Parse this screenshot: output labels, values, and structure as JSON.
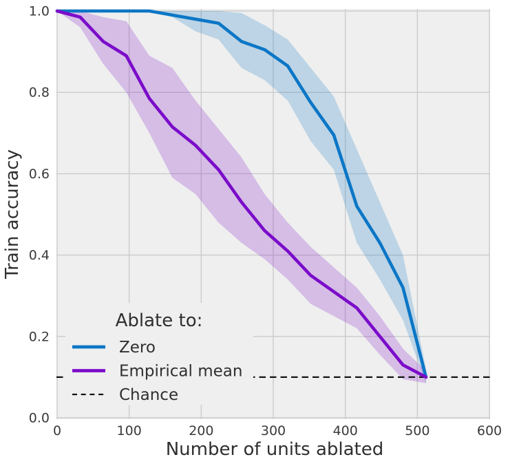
{
  "chart_data": {
    "type": "line",
    "title": "",
    "xlabel": "Number of units ablated",
    "ylabel": "Train accuracy",
    "xlim": [
      0,
      600
    ],
    "ylim": [
      0.0,
      1.0
    ],
    "x_ticks": [
      0,
      100,
      200,
      300,
      400,
      500,
      600
    ],
    "y_ticks": [
      0.0,
      0.2,
      0.4,
      0.6,
      0.8,
      1.0
    ],
    "y_tick_labels": [
      "0.0",
      "0.2",
      "0.4",
      "0.6",
      "0.8",
      "1.0"
    ],
    "grid": true,
    "legend_position": "lower left inside",
    "legend": {
      "title": "Ablate to:",
      "entries": [
        {
          "label": "Zero",
          "style": "solid",
          "color": "#0b76c6"
        },
        {
          "label": "Empirical mean",
          "style": "solid",
          "color": "#7b0cc9"
        },
        {
          "label": "Chance",
          "style": "dashed",
          "color": "#141414"
        }
      ]
    },
    "x": [
      0,
      32,
      64,
      96,
      128,
      160,
      192,
      224,
      256,
      288,
      320,
      352,
      384,
      416,
      448,
      480,
      512
    ],
    "series": [
      {
        "name": "Zero",
        "color": "#0b76c6",
        "values": [
          1.0,
          1.0,
          1.0,
          1.0,
          1.0,
          0.99,
          0.98,
          0.97,
          0.925,
          0.905,
          0.865,
          0.775,
          0.695,
          0.52,
          0.43,
          0.32,
          0.1
        ],
        "band_upper": [
          1.0,
          1.0,
          1.0,
          1.0,
          1.0,
          1.0,
          1.0,
          1.0,
          0.995,
          0.965,
          0.93,
          0.86,
          0.79,
          0.66,
          0.53,
          0.4,
          0.12
        ],
        "band_lower": [
          1.0,
          1.0,
          1.0,
          1.0,
          1.0,
          0.985,
          0.95,
          0.93,
          0.86,
          0.83,
          0.78,
          0.68,
          0.61,
          0.43,
          0.34,
          0.24,
          0.085
        ]
      },
      {
        "name": "Empirical mean",
        "color": "#7b0cc9",
        "values": [
          1.0,
          0.985,
          0.925,
          0.89,
          0.785,
          0.715,
          0.67,
          0.61,
          0.53,
          0.46,
          0.41,
          0.35,
          0.31,
          0.27,
          0.2,
          0.13,
          0.1
        ],
        "band_upper": [
          1.0,
          1.0,
          0.985,
          0.975,
          0.89,
          0.86,
          0.78,
          0.71,
          0.64,
          0.55,
          0.48,
          0.42,
          0.37,
          0.32,
          0.25,
          0.17,
          0.115
        ],
        "band_lower": [
          1.0,
          0.96,
          0.87,
          0.8,
          0.7,
          0.59,
          0.55,
          0.48,
          0.43,
          0.39,
          0.34,
          0.28,
          0.25,
          0.22,
          0.155,
          0.095,
          0.085
        ]
      }
    ],
    "chance_value": 0.1,
    "colors": {
      "figure_bg": "#ffffff",
      "plot_bg": "#efefef",
      "grid": "#cbcbcb",
      "tick_text": "#3a3a3a",
      "label_text": "#2f2f2f",
      "chance": "#141414"
    },
    "band_opacity": 0.22
  }
}
